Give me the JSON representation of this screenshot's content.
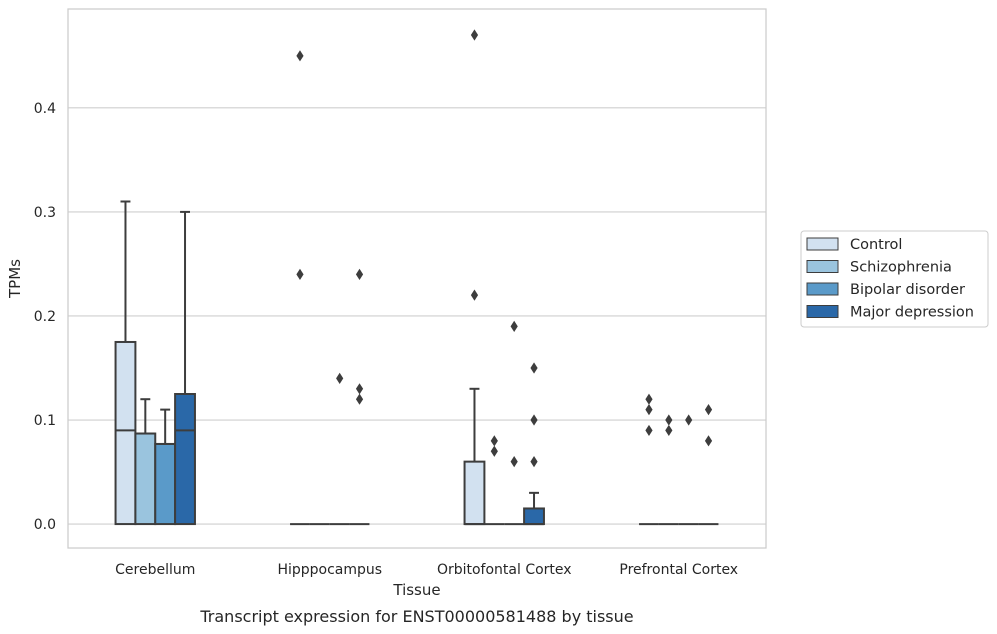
{
  "caption": "Transcript expression for ENST00000581488 by tissue",
  "chart_data": {
    "type": "box",
    "title": "",
    "xlabel": "Tissue",
    "ylabel": "TPMs",
    "ylim": [
      -0.023,
      0.495
    ],
    "yticks": [
      0.0,
      0.1,
      0.2,
      0.3,
      0.4
    ],
    "ytick_labels": [
      "0.0",
      "0.1",
      "0.2",
      "0.3",
      "0.4"
    ],
    "grid": "horizontal",
    "legend_position": "right",
    "categories": [
      "Cerebellum",
      "Hipppocampus",
      "Orbitofontal Cortex",
      "Prefrontal Cortex"
    ],
    "series": [
      {
        "name": "Control",
        "color": "#d2e1f0",
        "boxes": [
          {
            "q1": 0.0,
            "median": 0.09,
            "q3": 0.175,
            "whisker_low": 0.0,
            "whisker_high": 0.31,
            "fliers": []
          },
          {
            "q1": 0.0,
            "median": 0.0,
            "q3": 0.0,
            "whisker_low": 0.0,
            "whisker_high": 0.0,
            "fliers": [
              0.24,
              0.45
            ]
          },
          {
            "q1": 0.0,
            "median": 0.0,
            "q3": 0.06,
            "whisker_low": 0.0,
            "whisker_high": 0.13,
            "fliers": [
              0.22,
              0.47
            ]
          },
          {
            "q1": 0.0,
            "median": 0.0,
            "q3": 0.0,
            "whisker_low": 0.0,
            "whisker_high": 0.0,
            "fliers": [
              0.09,
              0.11,
              0.12
            ]
          }
        ]
      },
      {
        "name": "Schizophrenia",
        "color": "#9ac4de",
        "boxes": [
          {
            "q1": 0.0,
            "median": 0.087,
            "q3": 0.087,
            "whisker_low": 0.0,
            "whisker_high": 0.12,
            "fliers": []
          },
          {
            "q1": 0.0,
            "median": 0.0,
            "q3": 0.0,
            "whisker_low": 0.0,
            "whisker_high": 0.0,
            "fliers": []
          },
          {
            "q1": 0.0,
            "median": 0.0,
            "q3": 0.0,
            "whisker_low": 0.0,
            "whisker_high": 0.0,
            "fliers": [
              0.07,
              0.08
            ]
          },
          {
            "q1": 0.0,
            "median": 0.0,
            "q3": 0.0,
            "whisker_low": 0.0,
            "whisker_high": 0.0,
            "fliers": [
              0.09,
              0.1
            ]
          }
        ]
      },
      {
        "name": "Bipolar disorder",
        "color": "#5a9ac9",
        "boxes": [
          {
            "q1": 0.0,
            "median": 0.077,
            "q3": 0.077,
            "whisker_low": 0.0,
            "whisker_high": 0.11,
            "fliers": []
          },
          {
            "q1": 0.0,
            "median": 0.0,
            "q3": 0.0,
            "whisker_low": 0.0,
            "whisker_high": 0.0,
            "fliers": [
              0.14
            ]
          },
          {
            "q1": 0.0,
            "median": 0.0,
            "q3": 0.0,
            "whisker_low": 0.0,
            "whisker_high": 0.0,
            "fliers": [
              0.06,
              0.19
            ]
          },
          {
            "q1": 0.0,
            "median": 0.0,
            "q3": 0.0,
            "whisker_low": 0.0,
            "whisker_high": 0.0,
            "fliers": [
              0.1
            ]
          }
        ]
      },
      {
        "name": "Major depression",
        "color": "#2a68a8",
        "boxes": [
          {
            "q1": 0.0,
            "median": 0.09,
            "q3": 0.125,
            "whisker_low": 0.0,
            "whisker_high": 0.3,
            "fliers": []
          },
          {
            "q1": 0.0,
            "median": 0.0,
            "q3": 0.0,
            "whisker_low": 0.0,
            "whisker_high": 0.0,
            "fliers": [
              0.12,
              0.13,
              0.24
            ]
          },
          {
            "q1": 0.0,
            "median": 0.0,
            "q3": 0.015,
            "whisker_low": 0.0,
            "whisker_high": 0.03,
            "fliers": [
              0.06,
              0.1,
              0.15
            ]
          },
          {
            "q1": 0.0,
            "median": 0.0,
            "q3": 0.0,
            "whisker_low": 0.0,
            "whisker_high": 0.0,
            "fliers": [
              0.08,
              0.11
            ]
          }
        ]
      }
    ]
  }
}
